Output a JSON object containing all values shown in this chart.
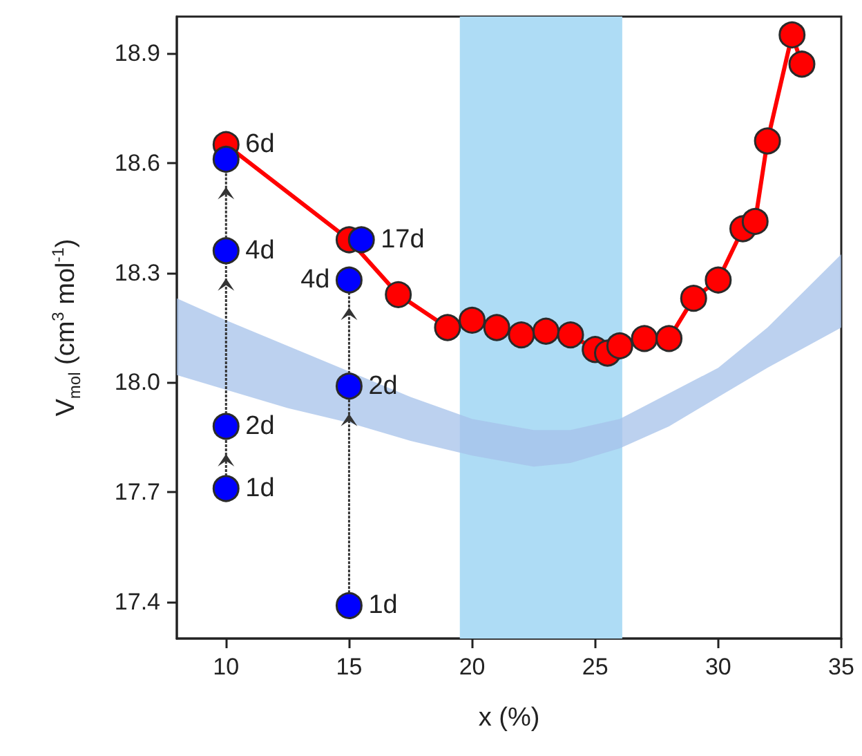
{
  "chart_data": {
    "type": "line",
    "xlabel": "x (%)",
    "ylabel": "V$_{mol}$ (cm$^{3}$ mol$^{-1}$)",
    "xlim": [
      8,
      35
    ],
    "xticks": [
      10,
      15,
      20,
      25,
      30,
      35
    ],
    "ylim": [
      17.3,
      19.0
    ],
    "yticks": [
      17.4,
      17.7,
      {
        "value": 18.0,
        "label": "18.0"
      },
      18.3,
      18.6,
      18.9
    ],
    "marker": "circle",
    "series": [
      {
        "type": "area",
        "color": "#a6c1e9",
        "x": [
          8,
          10,
          12.5,
          15,
          17.5,
          20,
          22.5,
          24,
          26,
          28,
          30,
          32,
          35
        ],
        "values": [
          null,
          null,
          null,
          null,
          null,
          null,
          null,
          null,
          null,
          null,
          null,
          null,
          null
        ],
        "lower": [
          18.02,
          17.98,
          17.93,
          17.89,
          17.84,
          17.8,
          17.77,
          17.78,
          17.82,
          17.88,
          17.96,
          18.04,
          18.15
        ],
        "upper": [
          18.23,
          18.17,
          18.1,
          18.03,
          17.96,
          17.9,
          17.87,
          17.87,
          17.9,
          17.97,
          18.04,
          18.15,
          18.35
        ]
      },
      {
        "color": "#ff0000",
        "x": [
          10,
          15,
          17,
          19,
          20,
          21,
          22,
          23,
          24,
          25,
          25.5,
          26,
          27,
          28,
          29,
          30,
          31,
          31.5,
          32,
          33,
          33.4
        ],
        "values": [
          18.65,
          18.39,
          18.24,
          18.15,
          18.17,
          18.15,
          18.13,
          18.14,
          18.13,
          18.09,
          18.08,
          18.1,
          18.12,
          18.12,
          18.23,
          18.28,
          18.42,
          18.44,
          18.66,
          18.95,
          18.87
        ]
      },
      {
        "type": "scatter",
        "color": "#0000ff",
        "x": [
          10,
          10,
          10,
          10,
          15.5,
          15,
          15,
          15
        ],
        "values": [
          17.71,
          17.88,
          18.36,
          18.61,
          18.39,
          18.28,
          17.99,
          17.39
        ]
      }
    ],
    "bands": [
      {
        "axis": "x",
        "from": 19.5,
        "to": 26.1,
        "color": "#aedcf5"
      }
    ],
    "annotations": [
      {
        "text": "6d",
        "x": 10,
        "y": 18.65
      },
      {
        "text": "4d",
        "x": 10,
        "y": 18.36
      },
      {
        "text": "2d",
        "x": 10,
        "y": 17.88
      },
      {
        "text": "1d",
        "x": 10,
        "y": 17.71
      },
      {
        "text": "17d",
        "x": 15.5,
        "y": 18.39
      },
      {
        "text": "4d",
        "x": 15,
        "y": 18.28
      },
      {
        "text": "2d",
        "x": 15,
        "y": 17.99
      },
      {
        "text": "1d",
        "x": 15,
        "y": 17.39
      }
    ]
  }
}
